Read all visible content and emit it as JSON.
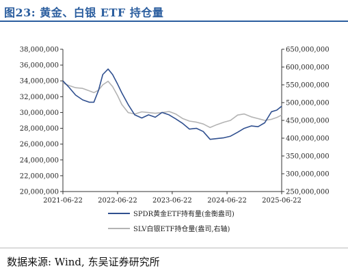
{
  "title": "图23:  黄金、白银 ETF 持仓量",
  "source": "数据来源:  Wind,  东吴证券研究所",
  "colors": {
    "title": "#2a5d9e",
    "gold": "#2f4f8f",
    "silver": "#b3b3b3"
  },
  "chart_data": {
    "type": "line",
    "grid": false,
    "legend_position": "bottom-right",
    "x_ticks": [
      "2021-06-22",
      "2022-06-22",
      "2023-06-22",
      "2024-06-22",
      "2025-06-22"
    ],
    "xlim": [
      "2021-06-22",
      "2025-06-22"
    ],
    "y_left": {
      "ylim": [
        20000000,
        38000000
      ],
      "ticks": [
        "20,000,000",
        "22,000,000",
        "24,000,000",
        "26,000,000",
        "28,000,000",
        "30,000,000",
        "32,000,000",
        "34,000,000",
        "36,000,000",
        "38,000,000"
      ]
    },
    "y_right": {
      "ylim": [
        250000000,
        650000000
      ],
      "ticks": [
        "250,000,000",
        "300,000,000",
        "350,000,000",
        "400,000,000",
        "450,000,000",
        "500,000,000",
        "550,000,000",
        "600,000,000",
        "650,000,000"
      ]
    },
    "series": [
      {
        "name": "SPDR黄金ETF持有量(金衡盎司)",
        "axis": "left",
        "x": [
          "2021-06-22",
          "2021-08-01",
          "2021-09-15",
          "2021-11-01",
          "2021-12-15",
          "2022-01-15",
          "2022-02-15",
          "2022-03-15",
          "2022-04-20",
          "2022-05-20",
          "2022-06-22",
          "2022-07-20",
          "2022-09-01",
          "2022-10-15",
          "2022-12-01",
          "2023-01-15",
          "2023-03-01",
          "2023-04-15",
          "2023-06-01",
          "2023-07-15",
          "2023-09-01",
          "2023-10-15",
          "2023-12-01",
          "2024-01-15",
          "2024-03-01",
          "2024-04-15",
          "2024-06-01",
          "2024-07-15",
          "2024-09-01",
          "2024-10-15",
          "2024-12-01",
          "2025-01-15",
          "2025-03-01",
          "2025-04-15",
          "2025-05-20",
          "2025-06-22"
        ],
        "values": [
          34000000,
          33200000,
          32200000,
          31600000,
          31300000,
          31300000,
          32800000,
          34800000,
          35500000,
          34800000,
          33600000,
          32500000,
          31000000,
          29700000,
          29300000,
          29700000,
          29400000,
          30000000,
          29700000,
          29200000,
          28600000,
          27900000,
          28000000,
          27600000,
          26600000,
          26700000,
          26800000,
          27000000,
          27500000,
          28000000,
          28300000,
          28200000,
          28700000,
          30100000,
          30300000,
          30800000
        ]
      },
      {
        "name": "SLV白银ETF持仓量(盎司,右轴)",
        "axis": "right",
        "x": [
          "2021-06-22",
          "2021-08-01",
          "2021-09-15",
          "2021-11-01",
          "2021-12-15",
          "2022-01-15",
          "2022-02-15",
          "2022-03-15",
          "2022-04-20",
          "2022-05-20",
          "2022-06-22",
          "2022-07-20",
          "2022-09-01",
          "2022-10-15",
          "2022-12-01",
          "2023-01-15",
          "2023-03-01",
          "2023-04-15",
          "2023-06-01",
          "2023-07-15",
          "2023-09-01",
          "2023-10-15",
          "2023-12-01",
          "2024-01-15",
          "2024-03-01",
          "2024-04-15",
          "2024-06-01",
          "2024-07-15",
          "2024-09-01",
          "2024-10-15",
          "2024-12-01",
          "2025-01-15",
          "2025-03-01",
          "2025-04-15",
          "2025-05-20",
          "2025-06-22"
        ],
        "values": [
          555000000,
          548000000,
          542000000,
          540000000,
          533000000,
          528000000,
          535000000,
          550000000,
          560000000,
          545000000,
          520000000,
          495000000,
          472000000,
          468000000,
          474000000,
          472000000,
          470000000,
          472000000,
          475000000,
          468000000,
          455000000,
          448000000,
          445000000,
          440000000,
          430000000,
          438000000,
          445000000,
          450000000,
          465000000,
          468000000,
          460000000,
          455000000,
          450000000,
          453000000,
          458000000,
          465000000
        ]
      }
    ]
  }
}
